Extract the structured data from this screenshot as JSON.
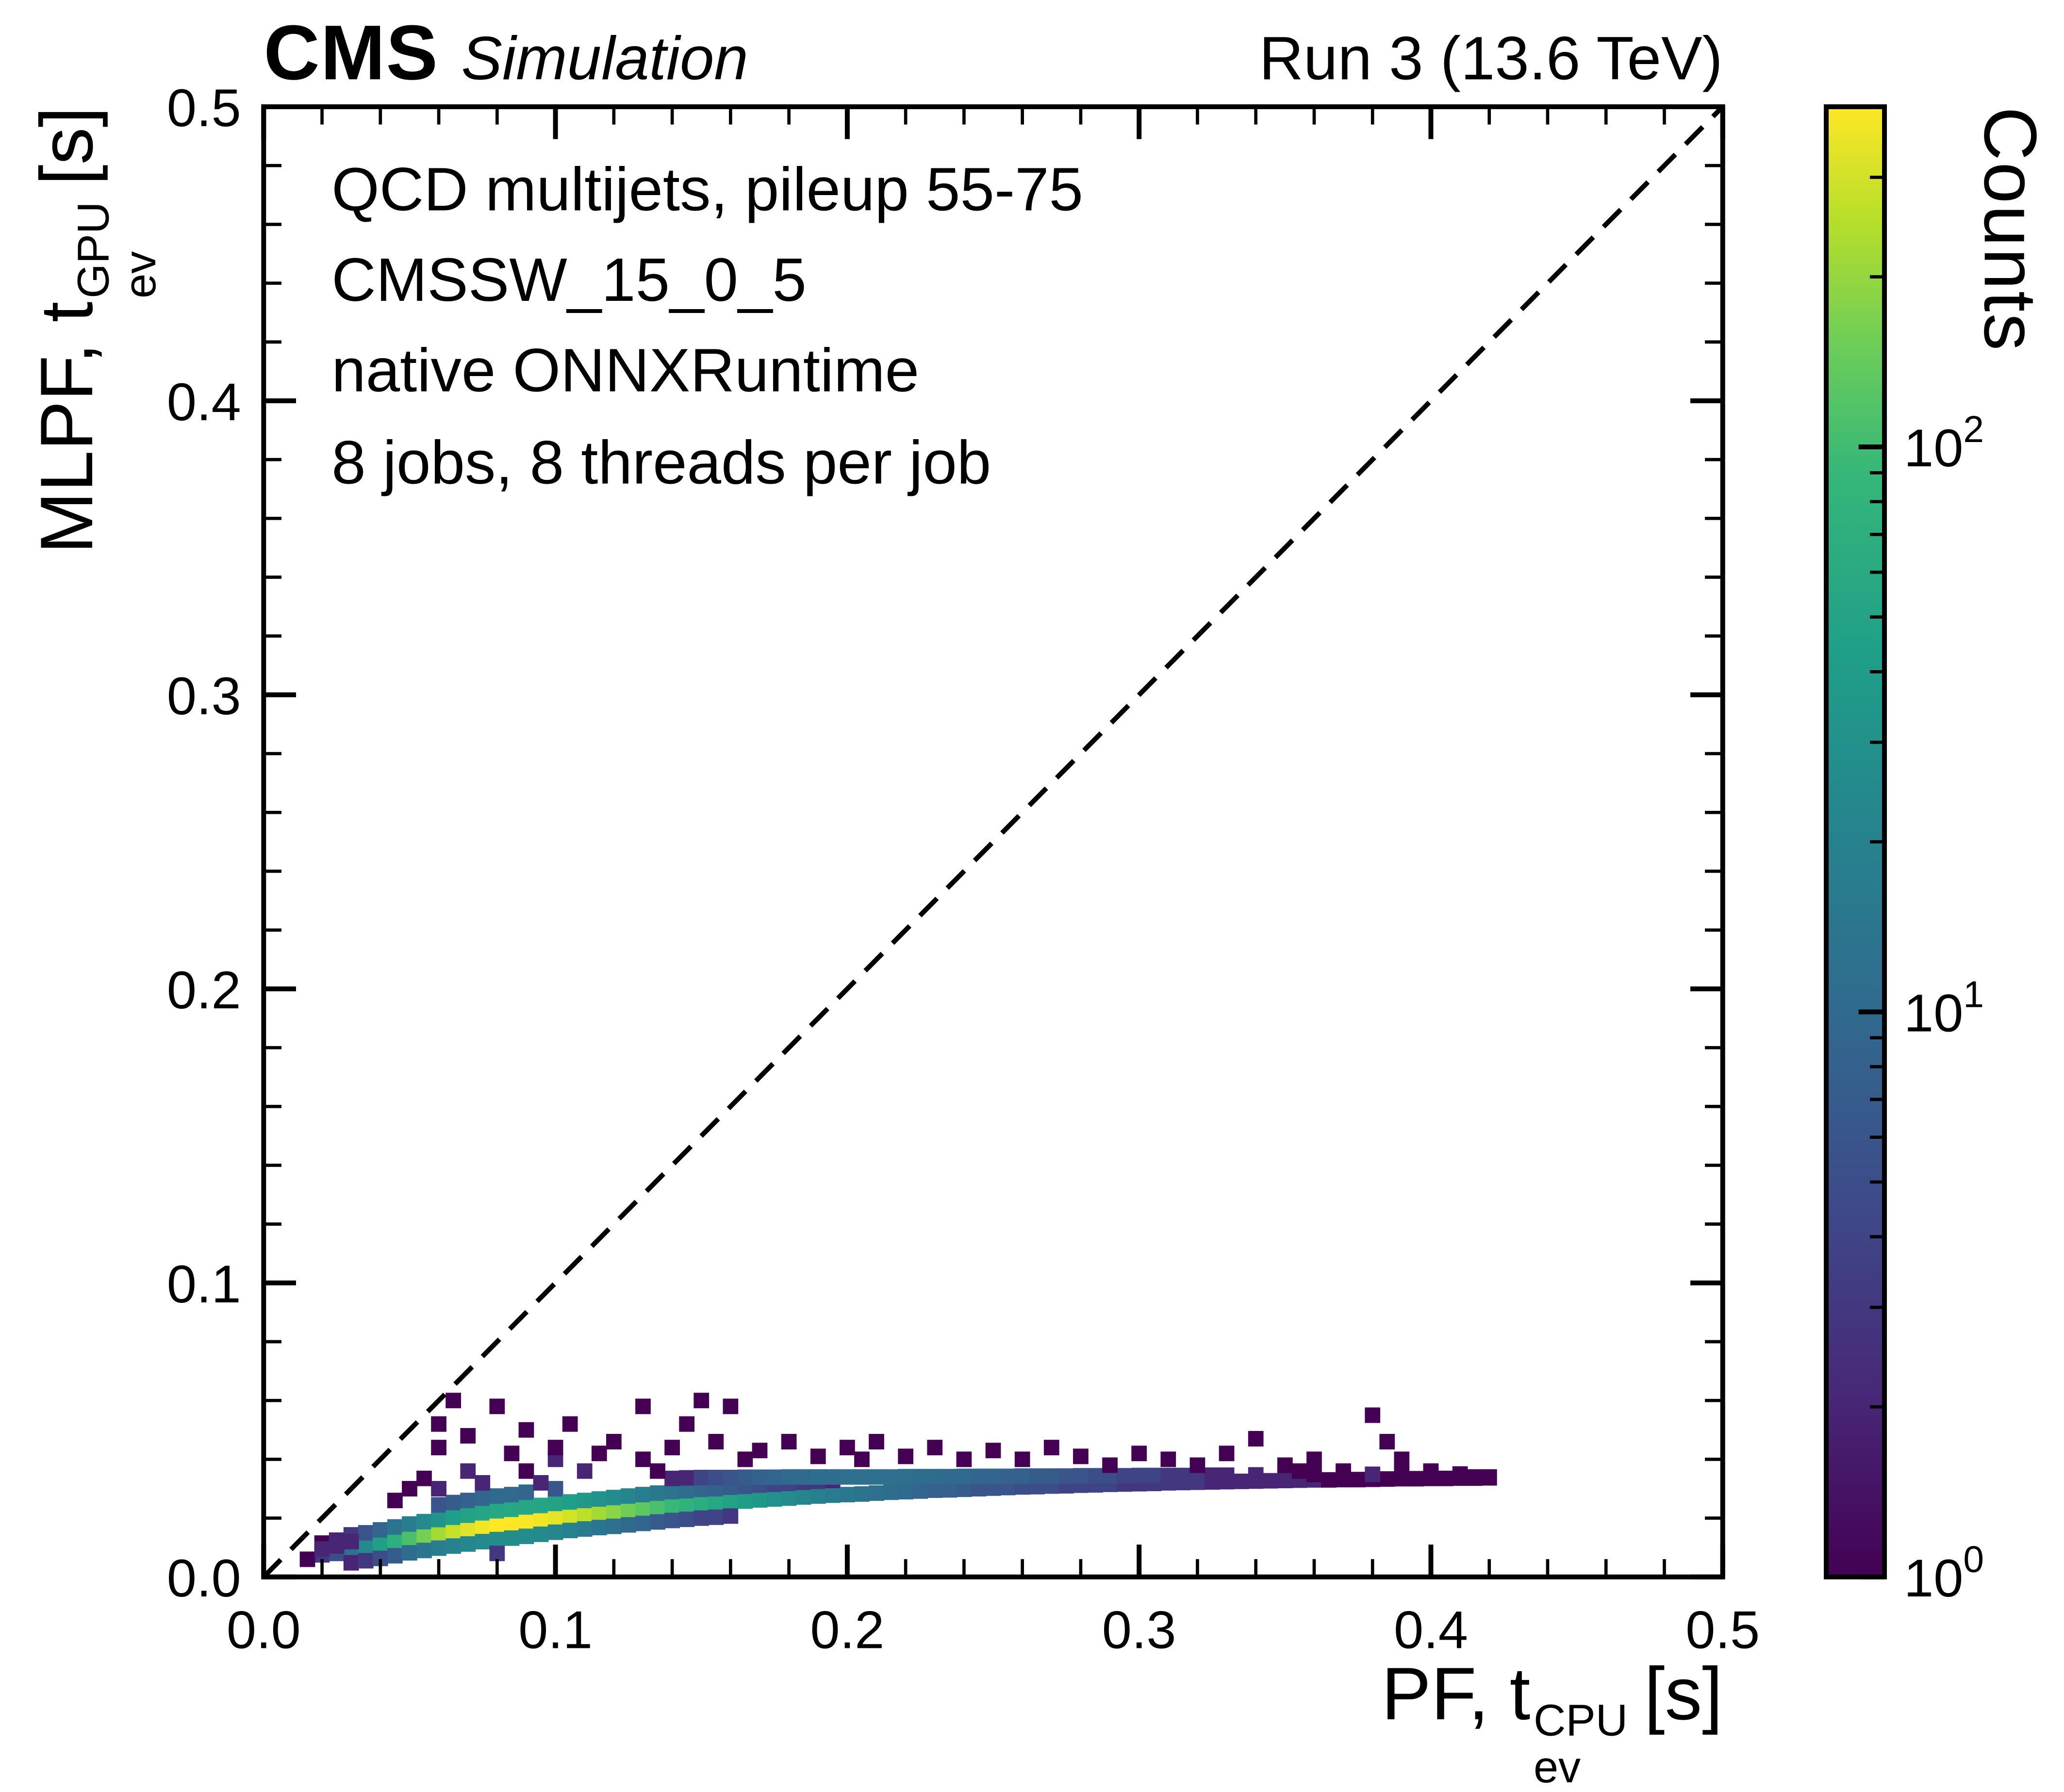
{
  "header": {
    "experiment": "CMS",
    "label": "Simulation",
    "right": "Run 3 (13.6 TeV)"
  },
  "annotations": [
    "QCD multijets, pileup 55-75",
    "CMSSW_15_0_5",
    "native ONNXRuntime",
    "8 jobs, 8 threads per job"
  ],
  "axes": {
    "x": {
      "label_prefix": "PF, t",
      "label_sup": "CPU",
      "label_sub": "ev",
      "label_suffix": "[s]",
      "min": 0,
      "max": 0.5,
      "ticks": [
        "0.0",
        "0.1",
        "0.2",
        "0.3",
        "0.4",
        "0.5"
      ],
      "tick_values": [
        0,
        0.1,
        0.2,
        0.3,
        0.4,
        0.5
      ],
      "minor_step": 0.02
    },
    "y": {
      "label_prefix": "MLPF, t",
      "label_sup": "GPU",
      "label_sub": "ev",
      "label_suffix": "[s]",
      "min": 0,
      "max": 0.5,
      "ticks": [
        "0.0",
        "0.1",
        "0.2",
        "0.3",
        "0.4",
        "0.5"
      ],
      "tick_values": [
        0,
        0.1,
        0.2,
        0.3,
        0.4,
        0.5
      ],
      "minor_step": 0.02
    }
  },
  "colorbar": {
    "title": "Counts",
    "scale": "log",
    "ticks": [
      {
        "label": "10",
        "exp": "0",
        "value": 1
      },
      {
        "label": "10",
        "exp": "1",
        "value": 10
      },
      {
        "label": "10",
        "exp": "2",
        "value": 100
      }
    ]
  },
  "colors": {
    "background": "#ffffff",
    "frame": "#000000",
    "viridis_stops": [
      [
        0,
        "#440154"
      ],
      [
        0.125,
        "#482878"
      ],
      [
        0.25,
        "#3e4989"
      ],
      [
        0.375,
        "#31688e"
      ],
      [
        0.5,
        "#26828e"
      ],
      [
        0.625,
        "#1f9e89"
      ],
      [
        0.75,
        "#35b779"
      ],
      [
        0.84,
        "#6ece58"
      ],
      [
        0.92,
        "#b5de2b"
      ],
      [
        1,
        "#fde725"
      ]
    ]
  },
  "chart_data": {
    "type": "heatmap",
    "title": "",
    "xlabel": "PF, t_ev^CPU [s]",
    "ylabel": "MLPF, t_ev^GPU [s]",
    "xlim": [
      0,
      0.5
    ],
    "ylim": [
      0,
      0.5
    ],
    "bin_size": 0.005,
    "count_scale": "log",
    "color_max": 400,
    "reference_line": "y = x (dashed)",
    "legend": "none",
    "bins": [
      [
        0.02,
        0.0075,
        3
      ],
      [
        0.02,
        0.0115,
        1
      ],
      [
        0.025,
        0.008,
        5
      ],
      [
        0.025,
        0.0125,
        2
      ],
      [
        0.03,
        0.0093,
        12
      ],
      [
        0.03,
        0.0143,
        3
      ],
      [
        0.03,
        0.0048,
        2
      ],
      [
        0.035,
        0.01,
        25
      ],
      [
        0.035,
        0.015,
        6
      ],
      [
        0.035,
        0.0055,
        3
      ],
      [
        0.04,
        0.011,
        45
      ],
      [
        0.04,
        0.016,
        9
      ],
      [
        0.04,
        0.0063,
        5
      ],
      [
        0.045,
        0.012,
        70
      ],
      [
        0.045,
        0.017,
        13
      ],
      [
        0.045,
        0.0072,
        7
      ],
      [
        0.05,
        0.013,
        110
      ],
      [
        0.05,
        0.018,
        18
      ],
      [
        0.05,
        0.0082,
        11
      ],
      [
        0.055,
        0.0138,
        160
      ],
      [
        0.055,
        0.0188,
        25
      ],
      [
        0.055,
        0.009,
        14
      ],
      [
        0.06,
        0.0145,
        220
      ],
      [
        0.06,
        0.0195,
        33
      ],
      [
        0.06,
        0.0098,
        18
      ],
      [
        0.06,
        0.0245,
        6
      ],
      [
        0.065,
        0.0153,
        280
      ],
      [
        0.065,
        0.0203,
        42
      ],
      [
        0.065,
        0.0105,
        20
      ],
      [
        0.065,
        0.0253,
        7
      ],
      [
        0.07,
        0.016,
        330
      ],
      [
        0.07,
        0.021,
        48
      ],
      [
        0.07,
        0.0112,
        23
      ],
      [
        0.07,
        0.026,
        8
      ],
      [
        0.075,
        0.0168,
        370
      ],
      [
        0.075,
        0.0218,
        52
      ],
      [
        0.075,
        0.012,
        25
      ],
      [
        0.075,
        0.0268,
        9
      ],
      [
        0.08,
        0.0175,
        400
      ],
      [
        0.08,
        0.0225,
        56
      ],
      [
        0.08,
        0.0127,
        27
      ],
      [
        0.08,
        0.0275,
        10
      ],
      [
        0.08,
        0.008,
        3
      ],
      [
        0.085,
        0.018,
        400
      ],
      [
        0.085,
        0.023,
        56
      ],
      [
        0.085,
        0.0132,
        27
      ],
      [
        0.085,
        0.028,
        10
      ],
      [
        0.09,
        0.0188,
        390
      ],
      [
        0.09,
        0.0238,
        54
      ],
      [
        0.09,
        0.0138,
        26
      ],
      [
        0.09,
        0.0288,
        9
      ],
      [
        0.095,
        0.0193,
        370
      ],
      [
        0.095,
        0.0243,
        52
      ],
      [
        0.095,
        0.0145,
        25
      ],
      [
        0.1,
        0.02,
        340
      ],
      [
        0.1,
        0.025,
        48
      ],
      [
        0.1,
        0.0152,
        23
      ],
      [
        0.1,
        0.03,
        6
      ],
      [
        0.105,
        0.0205,
        300
      ],
      [
        0.105,
        0.0255,
        42
      ],
      [
        0.105,
        0.0158,
        20
      ],
      [
        0.11,
        0.021,
        260
      ],
      [
        0.11,
        0.026,
        36
      ],
      [
        0.11,
        0.0163,
        17
      ],
      [
        0.115,
        0.0215,
        220
      ],
      [
        0.115,
        0.0265,
        31
      ],
      [
        0.115,
        0.0168,
        14
      ],
      [
        0.12,
        0.022,
        185
      ],
      [
        0.12,
        0.027,
        26
      ],
      [
        0.12,
        0.0172,
        12
      ],
      [
        0.125,
        0.0225,
        155
      ],
      [
        0.125,
        0.0275,
        22
      ],
      [
        0.125,
        0.0177,
        10
      ],
      [
        0.13,
        0.023,
        130
      ],
      [
        0.13,
        0.028,
        18
      ],
      [
        0.13,
        0.0182,
        9
      ],
      [
        0.135,
        0.0235,
        110
      ],
      [
        0.135,
        0.0285,
        15
      ],
      [
        0.135,
        0.0187,
        7
      ],
      [
        0.14,
        0.024,
        92
      ],
      [
        0.14,
        0.029,
        13
      ],
      [
        0.14,
        0.0192,
        6
      ],
      [
        0.145,
        0.0243,
        78
      ],
      [
        0.145,
        0.0293,
        11
      ],
      [
        0.145,
        0.0196,
        5
      ],
      [
        0.15,
        0.0248,
        66
      ],
      [
        0.15,
        0.0298,
        9
      ],
      [
        0.15,
        0.02,
        4
      ],
      [
        0.155,
        0.025,
        56
      ],
      [
        0.155,
        0.03,
        8
      ],
      [
        0.155,
        0.0203,
        4
      ],
      [
        0.16,
        0.0255,
        48
      ],
      [
        0.16,
        0.0305,
        7
      ],
      [
        0.16,
        0.0207,
        3
      ],
      [
        0.165,
        0.0258,
        41
      ],
      [
        0.165,
        0.0308,
        6
      ],
      [
        0.17,
        0.0262,
        35
      ],
      [
        0.17,
        0.0312,
        5
      ],
      [
        0.175,
        0.0265,
        30
      ],
      [
        0.175,
        0.0315,
        4
      ],
      [
        0.18,
        0.0268,
        26
      ],
      [
        0.18,
        0.0318,
        4
      ],
      [
        0.185,
        0.0272,
        22
      ],
      [
        0.185,
        0.0322,
        3
      ],
      [
        0.19,
        0.0275,
        19
      ],
      [
        0.19,
        0.0325,
        3
      ],
      [
        0.195,
        0.0278,
        17
      ],
      [
        0.195,
        0.0328,
        2
      ],
      [
        0.2,
        0.028,
        15
      ],
      [
        0.205,
        0.0282,
        13
      ],
      [
        0.21,
        0.0285,
        12
      ],
      [
        0.215,
        0.0288,
        11
      ],
      [
        0.22,
        0.029,
        10
      ],
      [
        0.225,
        0.0292,
        9
      ],
      [
        0.23,
        0.0295,
        8
      ],
      [
        0.235,
        0.0296,
        8
      ],
      [
        0.24,
        0.0298,
        7
      ],
      [
        0.245,
        0.03,
        6
      ],
      [
        0.25,
        0.0302,
        6
      ],
      [
        0.255,
        0.0304,
        6
      ],
      [
        0.26,
        0.0306,
        5
      ],
      [
        0.265,
        0.0307,
        5
      ],
      [
        0.27,
        0.0309,
        5
      ],
      [
        0.275,
        0.031,
        4
      ],
      [
        0.28,
        0.0312,
        4
      ],
      [
        0.285,
        0.0313,
        4
      ],
      [
        0.29,
        0.0315,
        4
      ],
      [
        0.295,
        0.0316,
        3
      ],
      [
        0.3,
        0.0317,
        3
      ],
      [
        0.305,
        0.0318,
        3
      ],
      [
        0.31,
        0.032,
        3
      ],
      [
        0.315,
        0.0321,
        3
      ],
      [
        0.32,
        0.0322,
        3
      ],
      [
        0.325,
        0.0323,
        2
      ],
      [
        0.33,
        0.0324,
        2
      ],
      [
        0.335,
        0.0325,
        2
      ],
      [
        0.34,
        0.0326,
        2
      ],
      [
        0.345,
        0.0327,
        2
      ],
      [
        0.35,
        0.0328,
        2
      ],
      [
        0.355,
        0.0329,
        2
      ],
      [
        0.36,
        0.033,
        2
      ],
      [
        0.365,
        0.033,
        1
      ],
      [
        0.37,
        0.0331,
        1
      ],
      [
        0.375,
        0.0331,
        1
      ],
      [
        0.38,
        0.0332,
        1
      ],
      [
        0.385,
        0.0333,
        1
      ],
      [
        0.39,
        0.0334,
        1
      ],
      [
        0.395,
        0.0334,
        1
      ],
      [
        0.4,
        0.0335,
        1
      ],
      [
        0.405,
        0.0335,
        1
      ],
      [
        0.41,
        0.0336,
        1
      ],
      [
        0.415,
        0.0336,
        1
      ],
      [
        0.42,
        0.0337,
        1
      ],
      [
        0.14,
        0.0335,
        2
      ],
      [
        0.145,
        0.0337,
        2
      ],
      [
        0.15,
        0.0338,
        4
      ],
      [
        0.155,
        0.0338,
        5
      ],
      [
        0.16,
        0.0338,
        6
      ],
      [
        0.165,
        0.0339,
        7
      ],
      [
        0.17,
        0.0339,
        8
      ],
      [
        0.175,
        0.0339,
        9
      ],
      [
        0.18,
        0.034,
        10
      ],
      [
        0.185,
        0.034,
        10
      ],
      [
        0.19,
        0.034,
        11
      ],
      [
        0.195,
        0.034,
        11
      ],
      [
        0.2,
        0.034,
        12
      ],
      [
        0.205,
        0.034,
        12
      ],
      [
        0.21,
        0.034,
        12
      ],
      [
        0.215,
        0.034,
        12
      ],
      [
        0.22,
        0.0341,
        12
      ],
      [
        0.225,
        0.0341,
        11
      ],
      [
        0.23,
        0.0341,
        11
      ],
      [
        0.235,
        0.0341,
        10
      ],
      [
        0.24,
        0.0342,
        10
      ],
      [
        0.245,
        0.0342,
        9
      ],
      [
        0.25,
        0.0342,
        9
      ],
      [
        0.255,
        0.0342,
        8
      ],
      [
        0.26,
        0.0343,
        8
      ],
      [
        0.265,
        0.0343,
        7
      ],
      [
        0.27,
        0.0343,
        7
      ],
      [
        0.275,
        0.0343,
        6
      ],
      [
        0.28,
        0.0344,
        6
      ],
      [
        0.285,
        0.0344,
        5
      ],
      [
        0.29,
        0.0344,
        5
      ],
      [
        0.295,
        0.0344,
        4
      ],
      [
        0.3,
        0.0345,
        4
      ],
      [
        0.305,
        0.0345,
        4
      ],
      [
        0.31,
        0.0345,
        3
      ],
      [
        0.315,
        0.0345,
        3
      ],
      [
        0.32,
        0.0346,
        3
      ],
      [
        0.325,
        0.0346,
        2
      ],
      [
        0.33,
        0.0346,
        2
      ],
      [
        0.34,
        0.0347,
        2
      ],
      [
        0.35,
        0.0347,
        2
      ],
      [
        0.36,
        0.0348,
        1
      ],
      [
        0.37,
        0.0348,
        1
      ],
      [
        0.38,
        0.0349,
        2
      ],
      [
        0.39,
        0.0349,
        1
      ],
      [
        0.4,
        0.035,
        1
      ],
      [
        0.41,
        0.035,
        1
      ],
      [
        0.015,
        0.006,
        1
      ],
      [
        0.02,
        0.0095,
        2
      ],
      [
        0.025,
        0.0105,
        2
      ],
      [
        0.03,
        0.012,
        2
      ],
      [
        0.045,
        0.026,
        1
      ],
      [
        0.05,
        0.03,
        1
      ],
      [
        0.055,
        0.0335,
        1
      ],
      [
        0.06,
        0.03,
        2
      ],
      [
        0.06,
        0.044,
        1
      ],
      [
        0.06,
        0.052,
        1
      ],
      [
        0.065,
        0.06,
        1
      ],
      [
        0.07,
        0.036,
        2
      ],
      [
        0.07,
        0.048,
        1
      ],
      [
        0.075,
        0.032,
        2
      ],
      [
        0.08,
        0.058,
        1
      ],
      [
        0.085,
        0.042,
        1
      ],
      [
        0.09,
        0.036,
        1
      ],
      [
        0.09,
        0.05,
        1
      ],
      [
        0.095,
        0.032,
        2
      ],
      [
        0.1,
        0.04,
        2
      ],
      [
        0.1,
        0.044,
        1
      ],
      [
        0.105,
        0.052,
        1
      ],
      [
        0.11,
        0.036,
        2
      ],
      [
        0.115,
        0.042,
        1
      ],
      [
        0.12,
        0.046,
        1
      ],
      [
        0.13,
        0.058,
        1
      ],
      [
        0.13,
        0.04,
        1
      ],
      [
        0.135,
        0.036,
        1
      ],
      [
        0.14,
        0.044,
        1
      ],
      [
        0.145,
        0.052,
        1
      ],
      [
        0.15,
        0.06,
        1
      ],
      [
        0.155,
        0.046,
        1
      ],
      [
        0.16,
        0.058,
        1
      ],
      [
        0.165,
        0.04,
        1
      ],
      [
        0.17,
        0.043,
        1
      ],
      [
        0.18,
        0.046,
        1
      ],
      [
        0.19,
        0.041,
        1
      ],
      [
        0.2,
        0.044,
        1
      ],
      [
        0.205,
        0.04,
        1
      ],
      [
        0.21,
        0.046,
        1
      ],
      [
        0.22,
        0.041,
        1
      ],
      [
        0.23,
        0.044,
        1
      ],
      [
        0.24,
        0.04,
        1
      ],
      [
        0.25,
        0.043,
        1
      ],
      [
        0.26,
        0.04,
        1
      ],
      [
        0.27,
        0.044,
        1
      ],
      [
        0.28,
        0.041,
        1
      ],
      [
        0.29,
        0.038,
        1
      ],
      [
        0.3,
        0.042,
        1
      ],
      [
        0.31,
        0.04,
        1
      ],
      [
        0.32,
        0.038,
        1
      ],
      [
        0.33,
        0.042,
        1
      ],
      [
        0.34,
        0.047,
        1
      ],
      [
        0.35,
        0.038,
        1
      ],
      [
        0.36,
        0.04,
        1
      ],
      [
        0.37,
        0.036,
        1
      ],
      [
        0.38,
        0.055,
        1
      ],
      [
        0.385,
        0.046,
        1
      ],
      [
        0.39,
        0.04,
        1
      ],
      [
        0.4,
        0.036,
        1
      ],
      [
        0.355,
        0.036,
        1
      ],
      [
        0.415,
        0.034,
        1
      ],
      [
        0.42,
        0.034,
        1
      ]
    ]
  }
}
